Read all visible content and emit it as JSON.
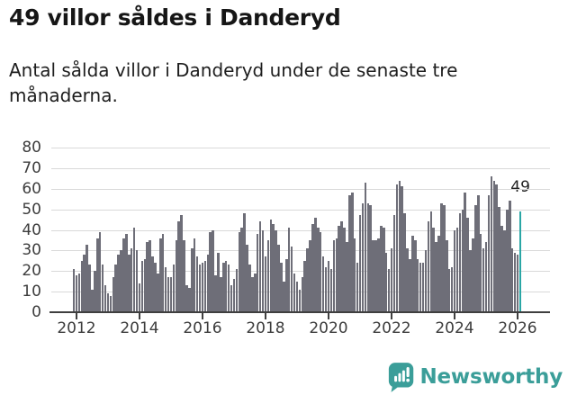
{
  "header": {
    "title": "49 villor såldes i Danderyd",
    "subtitle": "Antal sålda villor i Danderyd under de senaste tre månaderna."
  },
  "chart_data": {
    "type": "bar",
    "title": "49 villor såldes i Danderyd",
    "subtitle": "Antal sålda villor i Danderyd under de senaste tre månaderna.",
    "x_unit": "month",
    "period_start": "2011-12",
    "values": [
      21,
      18,
      19,
      25,
      28,
      33,
      23,
      11,
      20,
      36,
      39,
      23,
      13,
      9,
      8,
      17,
      23,
      28,
      30,
      36,
      38,
      28,
      31,
      41,
      30,
      14,
      25,
      26,
      34,
      35,
      27,
      24,
      19,
      36,
      38,
      22,
      17,
      17,
      23,
      35,
      44,
      47,
      35,
      13,
      12,
      31,
      36,
      27,
      23,
      24,
      25,
      28,
      39,
      40,
      18,
      29,
      17,
      24,
      25,
      23,
      13,
      16,
      21,
      39,
      41,
      48,
      33,
      23,
      17,
      19,
      38,
      44,
      40,
      27,
      35,
      45,
      43,
      40,
      33,
      24,
      15,
      26,
      41,
      32,
      19,
      15,
      11,
      17,
      25,
      31,
      35,
      43,
      46,
      41,
      39,
      27,
      22,
      25,
      21,
      35,
      36,
      42,
      44,
      41,
      34,
      57,
      58,
      36,
      24,
      47,
      53,
      63,
      53,
      52,
      35,
      35,
      36,
      42,
      41,
      29,
      21,
      31,
      47,
      62,
      64,
      61,
      48,
      31,
      26,
      37,
      35,
      26,
      24,
      24,
      30,
      44,
      49,
      41,
      34,
      37,
      53,
      52,
      35,
      21,
      22,
      40,
      41,
      48,
      50,
      58,
      46,
      30,
      36,
      52,
      57,
      38,
      31,
      34,
      57,
      66,
      64,
      62,
      51,
      42,
      40,
      50,
      54,
      31,
      29,
      28,
      49
    ],
    "highlight": {
      "index": 170,
      "label": "49",
      "color": "#2aa6a5"
    },
    "bar_color": "#6e6e78",
    "ylim": [
      0,
      80
    ],
    "yticks": [
      0,
      10,
      20,
      30,
      40,
      50,
      60,
      70,
      80
    ],
    "xtick_years": [
      2012,
      2014,
      2016,
      2018,
      2020,
      2022,
      2024,
      2026
    ],
    "grid": "horizontal",
    "legend": "none"
  },
  "footer": {
    "brand": "Newsworthy",
    "brand_color": "#3b9e99",
    "logo_icon": "newsworthy-speech-bubble-bar-chart-icon"
  }
}
